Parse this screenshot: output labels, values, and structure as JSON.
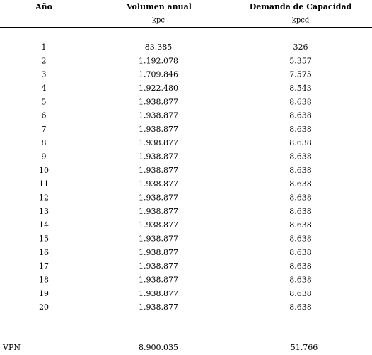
{
  "table": {
    "headers": [
      "Año",
      "Volumen anual",
      "Demanda de Capacidad"
    ],
    "units": {
      "volume": "kpc",
      "demand": "kpcd"
    },
    "rows": [
      [
        "1",
        "83.385",
        "326"
      ],
      [
        "2",
        "1.192.078",
        "5.357"
      ],
      [
        "3",
        "1.709.846",
        "7.575"
      ],
      [
        "4",
        "1.922.480",
        "8.543"
      ],
      [
        "5",
        "1.938.877",
        "8.638"
      ],
      [
        "6",
        "1.938.877",
        "8.638"
      ],
      [
        "7",
        "1.938.877",
        "8.638"
      ],
      [
        "8",
        "1.938.877",
        "8.638"
      ],
      [
        "9",
        "1.938.877",
        "8.638"
      ],
      [
        "10",
        "1.938.877",
        "8.638"
      ],
      [
        "11",
        "1.938.877",
        "8.638"
      ],
      [
        "12",
        "1.938.877",
        "8.638"
      ],
      [
        "13",
        "1.938.877",
        "8.638"
      ],
      [
        "14",
        "1.938.877",
        "8.638"
      ],
      [
        "15",
        "1.938.877",
        "8.638"
      ],
      [
        "16",
        "1.938.877",
        "8.638"
      ],
      [
        "17",
        "1.938.877",
        "8.638"
      ],
      [
        "18",
        "1.938.877",
        "8.638"
      ],
      [
        "19",
        "1.938.877",
        "8.638"
      ],
      [
        "20",
        "1.938.877",
        "8.638"
      ]
    ],
    "footer": {
      "label": "VPN",
      "values": [
        "8.900.035",
        "51.766"
      ]
    }
  }
}
